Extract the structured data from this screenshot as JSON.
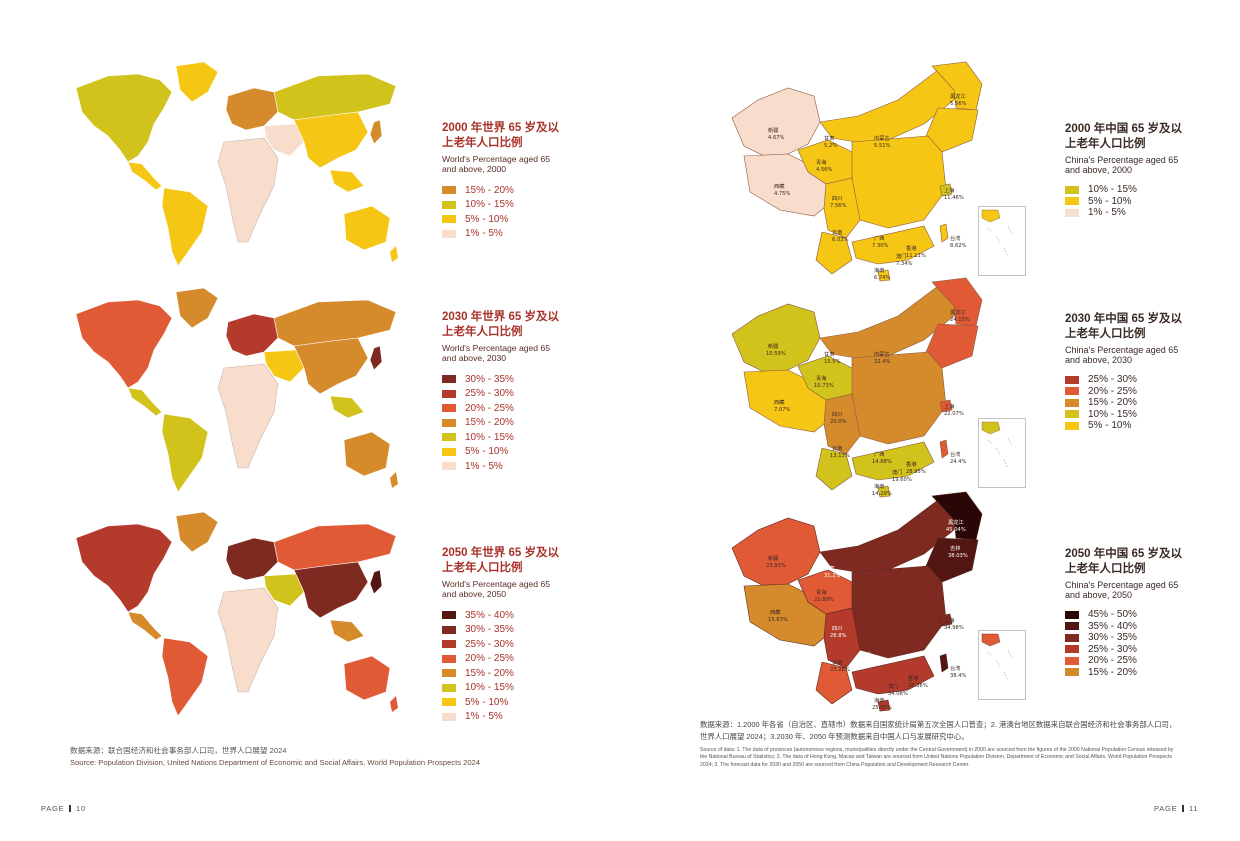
{
  "colors": {
    "c_1_5": "#f8dccc",
    "c_5_10": "#f6c614",
    "c_10_15": "#d2c21c",
    "c_15_20": "#d58a2c",
    "c_20_25": "#e05a36",
    "c_25_30": "#b43a2c",
    "c_30_35": "#7e2a20",
    "c_35_40": "#531612",
    "c_45_50": "#2a0707",
    "title_red": "#a8322a"
  },
  "world_maps": [
    {
      "title": "2000 年世界 65 岁及以上老年人口比例",
      "subtitle": "World's Percentage aged 65 and above, 2000",
      "legend": [
        {
          "label": "15% - 20%",
          "color": "#d58a2c"
        },
        {
          "label": "10% - 15%",
          "color": "#d2c21c"
        },
        {
          "label": "5% - 10%",
          "color": "#f6c614"
        },
        {
          "label": "1% - 5%",
          "color": "#f8dccc"
        }
      ]
    },
    {
      "title": "2030 年世界 65 岁及以上老年人口比例",
      "subtitle": "World's Percentage aged 65 and above, 2030",
      "legend": [
        {
          "label": "30% - 35%",
          "color": "#7e2a20"
        },
        {
          "label": "25% - 30%",
          "color": "#b43a2c"
        },
        {
          "label": "20% - 25%",
          "color": "#e05a36"
        },
        {
          "label": "15% - 20%",
          "color": "#d58a2c"
        },
        {
          "label": "10% - 15%",
          "color": "#d2c21c"
        },
        {
          "label": "5% - 10%",
          "color": "#f6c614"
        },
        {
          "label": "1% - 5%",
          "color": "#f8dccc"
        }
      ]
    },
    {
      "title": "2050 年世界 65 岁及以上老年人口比例",
      "subtitle": "World's Percentage aged 65 and above, 2050",
      "legend": [
        {
          "label": "35% - 40%",
          "color": "#531612"
        },
        {
          "label": "30% - 35%",
          "color": "#7e2a20"
        },
        {
          "label": "25% - 30%",
          "color": "#b43a2c"
        },
        {
          "label": "20% - 25%",
          "color": "#e05a36"
        },
        {
          "label": "15% - 20%",
          "color": "#d58a2c"
        },
        {
          "label": "10% - 15%",
          "color": "#d2c21c"
        },
        {
          "label": "5% - 10%",
          "color": "#f6c614"
        },
        {
          "label": "1% - 5%",
          "color": "#f8dccc"
        }
      ]
    }
  ],
  "china_maps": [
    {
      "title": "2000 年中国 65 岁及以上老年人口比例",
      "subtitle": "China's Percentage aged 65 and above, 2000",
      "legend": [
        {
          "label": "10% - 15%",
          "color": "#d2c21c"
        },
        {
          "label": "5% - 10%",
          "color": "#f6c614"
        },
        {
          "label": "1% - 5%",
          "color": "#f8dccc"
        }
      ],
      "provinces": [
        {
          "name": "新疆",
          "value": "4.67%"
        },
        {
          "name": "西藏",
          "value": "4.75%"
        },
        {
          "name": "青海",
          "value": "4.56%"
        },
        {
          "name": "甘肃",
          "value": "5.2%"
        },
        {
          "name": "内蒙古",
          "value": "5.51%"
        },
        {
          "name": "黑龙江",
          "value": "5.56%"
        },
        {
          "name": "四川",
          "value": "7.56%"
        },
        {
          "name": "云南",
          "value": "6.03%"
        },
        {
          "name": "广西",
          "value": "7.30%"
        },
        {
          "name": "香港",
          "value": "11.11%"
        },
        {
          "name": "澳门",
          "value": "7.34%"
        },
        {
          "name": "海南",
          "value": "6.74%"
        },
        {
          "name": "上海",
          "value": "11.46%"
        },
        {
          "name": "台湾",
          "value": "8.62%"
        }
      ]
    },
    {
      "title": "2030 年中国 65 岁及以上老年人口比例",
      "subtitle": "China's Percentage aged 65 and above, 2030",
      "legend": [
        {
          "label": "25% - 30%",
          "color": "#b43a2c"
        },
        {
          "label": "20% - 25%",
          "color": "#e05a36"
        },
        {
          "label": "15% - 20%",
          "color": "#d58a2c"
        },
        {
          "label": "10% - 15%",
          "color": "#d2c21c"
        },
        {
          "label": "5% - 10%",
          "color": "#f6c614"
        }
      ],
      "provinces": [
        {
          "name": "新疆",
          "value": "10.59%"
        },
        {
          "name": "西藏",
          "value": "7.07%"
        },
        {
          "name": "青海",
          "value": "10.73%"
        },
        {
          "name": "甘肃",
          "value": "15.5%"
        },
        {
          "name": "内蒙古",
          "value": "22.4%"
        },
        {
          "name": "黑龙江",
          "value": "24.15%"
        },
        {
          "name": "四川",
          "value": "20.0%"
        },
        {
          "name": "云南",
          "value": "13.13%"
        },
        {
          "name": "广西",
          "value": "14.88%"
        },
        {
          "name": "香港",
          "value": "28.95%"
        },
        {
          "name": "澳门",
          "value": "19.60%"
        },
        {
          "name": "海南",
          "value": "14.29%"
        },
        {
          "name": "上海",
          "value": "22.07%"
        },
        {
          "name": "台湾",
          "value": "24.4%"
        }
      ]
    },
    {
      "title": "2050 年中国 65 岁及以上老年人口比例",
      "subtitle": "China's Percentage aged 65 and above, 2050",
      "legend": [
        {
          "label": "45% - 50%",
          "color": "#2a0707"
        },
        {
          "label": "35% - 40%",
          "color": "#531612"
        },
        {
          "label": "30% - 35%",
          "color": "#7e2a20"
        },
        {
          "label": "25% - 30%",
          "color": "#b43a2c"
        },
        {
          "label": "20% - 25%",
          "color": "#e05a36"
        },
        {
          "label": "15% - 20%",
          "color": "#d58a2c"
        }
      ],
      "provinces": [
        {
          "name": "新疆",
          "value": "23.93%"
        },
        {
          "name": "西藏",
          "value": "15.63%"
        },
        {
          "name": "青海",
          "value": "21.89%"
        },
        {
          "name": "甘肃",
          "value": "31.2%"
        },
        {
          "name": "黑龙江",
          "value": "45.04%"
        },
        {
          "name": "吉林",
          "value": "38.03%"
        },
        {
          "name": "四川",
          "value": "28.8%"
        },
        {
          "name": "云南",
          "value": "23.28%"
        },
        {
          "name": "贵州",
          "value": "27.7%"
        },
        {
          "name": "澳门",
          "value": "34.08%"
        },
        {
          "name": "香港",
          "value": "36.36%"
        },
        {
          "name": "海南",
          "value": "25.85%"
        },
        {
          "name": "上海",
          "value": "34.98%"
        },
        {
          "name": "台湾",
          "value": "38.4%"
        }
      ]
    }
  ],
  "source_left": {
    "zh": "数据来源：联合国经济和社会事务部人口司，世界人口展望 2024",
    "en": "Source: Population Division, United Nations Department of Economic and Social Affairs. World Population Prospects 2024"
  },
  "source_right": {
    "zh": "数据来源：1.2000 年各省（自治区、直辖市）数据来自国家统计局第五次全国人口普查；2. 港澳台地区数据来自联合国经济和社会事务部人口司，世界人口展望 2024；3.2030 年、2050 年预测数据来自中国人口与发展研究中心。",
    "en": "Source of data: 1. The data of provinces (autonomous regions, municipalities directly under the Central Government) in 2000 are sourced from the figures of the 2000 National Population Census released by the National Bureau of Statistics; 2. The data of Hong Kong, Macao and Taiwan are sourced from United Nations Population Division, Department of Economic and Social Affairs, World Population Prospects 2024; 3. The forecast data for 2030 and 2050 are sourced from China Population and Development Research Center."
  },
  "pages": {
    "label": "PAGE",
    "left": "10",
    "right": "11"
  }
}
